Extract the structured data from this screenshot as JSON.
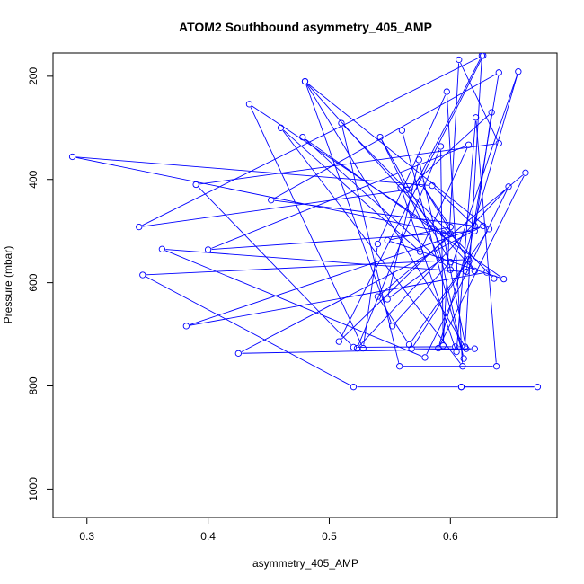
{
  "chart_data": {
    "type": "line",
    "title": "ATOM2 Southbound asymmetry_405_AMP",
    "xlabel": "asymmetry_405_AMP",
    "ylabel": "Pressure (mbar)",
    "xlim": [
      0.272,
      0.688
    ],
    "ylim": [
      1055,
      155
    ],
    "y_inverted": true,
    "grid": false,
    "legend": "none",
    "x_ticks": [
      0.3,
      0.4,
      0.5,
      0.6
    ],
    "y_ticks": [
      200,
      400,
      600,
      800,
      1000
    ],
    "x_tick_labels": [
      "0.3",
      "0.4",
      "0.5",
      "0.6"
    ],
    "y_tick_labels": [
      "200",
      "400",
      "600",
      "800",
      "1000"
    ],
    "series_color": "#0000ff",
    "series": [
      {
        "marker": "open-circle",
        "points": [
          [
            0.609,
            802
          ],
          [
            0.672,
            802
          ],
          [
            0.609,
            802
          ],
          [
            0.52,
            802
          ],
          [
            0.346,
            585
          ],
          [
            0.615,
            555
          ],
          [
            0.568,
            728
          ],
          [
            0.62,
            728
          ],
          [
            0.425,
            737
          ],
          [
            0.627,
            490
          ],
          [
            0.382,
            684
          ],
          [
            0.63,
            580
          ],
          [
            0.636,
            592
          ],
          [
            0.51,
            291
          ],
          [
            0.558,
            762
          ],
          [
            0.638,
            762
          ],
          [
            0.621,
            280
          ],
          [
            0.605,
            734
          ],
          [
            0.559,
            415
          ],
          [
            0.57,
            415
          ],
          [
            0.626,
            160
          ],
          [
            0.612,
            724
          ],
          [
            0.604,
            724
          ],
          [
            0.52,
            725
          ],
          [
            0.39,
            410
          ],
          [
            0.64,
            330
          ],
          [
            0.607,
            168
          ],
          [
            0.594,
            722
          ],
          [
            0.592,
            336
          ],
          [
            0.523,
            727
          ],
          [
            0.648,
            414
          ],
          [
            0.579,
            745
          ],
          [
            0.362,
            535
          ],
          [
            0.613,
            579
          ],
          [
            0.64,
            193
          ],
          [
            0.452,
            440
          ],
          [
            0.62,
            490
          ],
          [
            0.585,
            412
          ],
          [
            0.288,
            356
          ],
          [
            0.6,
            505
          ],
          [
            0.508,
            714
          ],
          [
            0.627,
            160
          ],
          [
            0.343,
            492
          ],
          [
            0.564,
            420
          ],
          [
            0.634,
            270
          ],
          [
            0.62,
            500
          ],
          [
            0.4,
            536
          ],
          [
            0.615,
            333
          ],
          [
            0.575,
            540
          ],
          [
            0.46,
            300
          ],
          [
            0.61,
            762
          ],
          [
            0.597,
            230
          ],
          [
            0.54,
            525
          ],
          [
            0.528,
            727
          ],
          [
            0.434,
            254
          ],
          [
            0.594,
            505
          ],
          [
            0.613,
            728
          ],
          [
            0.48,
            210
          ],
          [
            0.62,
            577
          ],
          [
            0.576,
            408
          ],
          [
            0.6,
            492
          ],
          [
            0.548,
            518
          ],
          [
            0.644,
            593
          ],
          [
            0.478,
            318
          ],
          [
            0.6,
            575
          ],
          [
            0.656,
            191
          ],
          [
            0.59,
            727
          ],
          [
            0.662,
            387
          ],
          [
            0.54,
            627
          ],
          [
            0.566,
            720
          ],
          [
            0.632,
            496
          ],
          [
            0.48,
            210
          ],
          [
            0.552,
            684
          ],
          [
            0.6,
            560
          ],
          [
            0.542,
            318
          ],
          [
            0.592,
            556
          ],
          [
            0.548,
            632
          ],
          [
            0.574,
            362
          ],
          [
            0.611,
            747
          ],
          [
            0.56,
            305
          ]
        ]
      }
    ]
  }
}
